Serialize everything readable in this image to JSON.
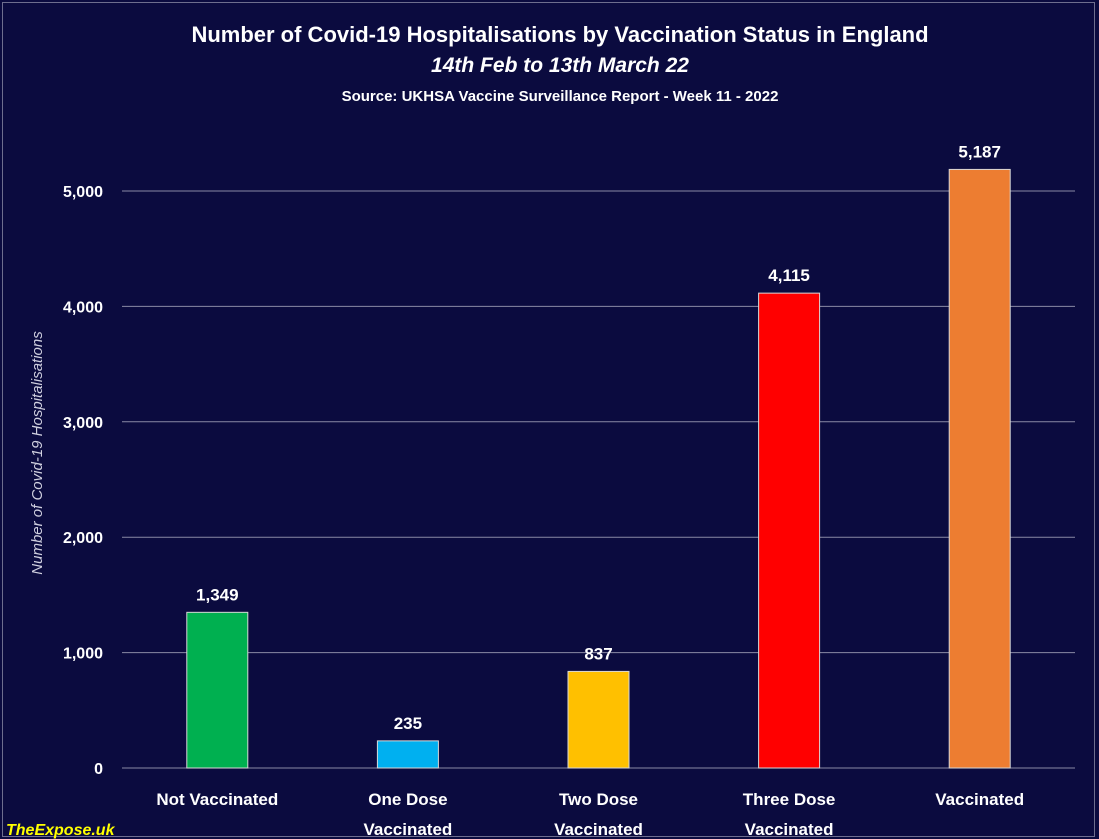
{
  "chart_data": {
    "type": "bar",
    "title": "Number of Covid-19 Hospitalisations by Vaccination Status in England",
    "subtitle": "14th Feb to 13th March 22",
    "source": "Source: UKHSA Vaccine Surveillance Report - Week 11 - 2022",
    "ylabel": "Number of Covid-19 Hospitalisations",
    "xlabel": "",
    "ylim": [
      0,
      5000
    ],
    "yticks": [
      0,
      1000,
      2000,
      3000,
      4000,
      5000
    ],
    "ytick_labels": [
      "0",
      "1,000",
      "2,000",
      "3,000",
      "4,000",
      "5,000"
    ],
    "grid": true,
    "categories": [
      [
        "Not Vaccinated"
      ],
      [
        "One Dose",
        "Vaccinated"
      ],
      [
        "Two Dose",
        "Vaccinated"
      ],
      [
        "Three Dose",
        "Vaccinated"
      ],
      [
        "Vaccinated"
      ]
    ],
    "values": [
      1349,
      235,
      837,
      4115,
      5187
    ],
    "data_labels": [
      "1,349",
      "235",
      "837",
      "4,115",
      "5,187"
    ],
    "colors": [
      "#00b050",
      "#00b0f0",
      "#ffc000",
      "#ff0000",
      "#ed7d31"
    ]
  },
  "watermark": "TheExpose.uk",
  "colors": {
    "background": "#0b0b3f",
    "gridline": "#8a8aa6",
    "text": "#ffffff",
    "watermark": "#ffff00"
  }
}
